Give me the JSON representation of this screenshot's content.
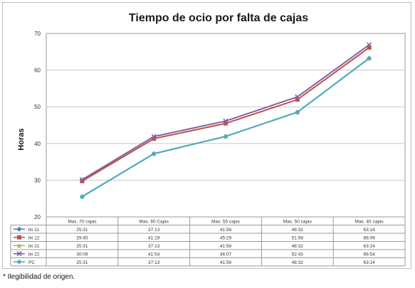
{
  "chart_data": {
    "type": "line",
    "title": "Tiempo de ocio por falta de cajas",
    "ylabel": "Horas",
    "xlabel": "",
    "ylim": [
      20,
      70
    ],
    "yticks": [
      20,
      30,
      40,
      50,
      60,
      70
    ],
    "grid": true,
    "legend": "table-below",
    "categories": [
      "Max. 70 cajas",
      "Max. 60 Cajas",
      "Max. 55 cajas",
      "Max. 50 cajas",
      "Max. 40 cajas"
    ],
    "series": [
      {
        "name": "lin 11",
        "color": "#4a7ebb",
        "marker": "diamond",
        "values": [
          25.52,
          37.22,
          41.93,
          48.53,
          63.23
        ],
        "labels": [
          "25:31",
          "37:13",
          "41:56",
          "48:32",
          "63:14"
        ]
      },
      {
        "name": "lin 12",
        "color": "#c0504d",
        "marker": "square",
        "values": [
          29.75,
          41.32,
          45.48,
          51.97,
          66.15
        ],
        "labels": [
          "29:45",
          "41:19",
          "45:29",
          "51:58",
          "66:09"
        ]
      },
      {
        "name": "lin 21",
        "color": "#9bbb59",
        "marker": "triangle",
        "values": [
          25.52,
          37.22,
          41.93,
          48.53,
          63.23
        ],
        "labels": [
          "25:31",
          "37:13",
          "41:56",
          "48:32",
          "63:14"
        ]
      },
      {
        "name": "lin 22",
        "color": "#8064a2",
        "marker": "x",
        "values": [
          30.15,
          41.9,
          46.12,
          52.72,
          66.9
        ],
        "labels": [
          "30:09",
          "41:54",
          "46:07",
          "52:43",
          "66:54"
        ]
      },
      {
        "name": "PC",
        "color": "#4bacc6",
        "marker": "star",
        "values": [
          25.52,
          37.22,
          41.93,
          48.53,
          63.23
        ],
        "labels": [
          "25:31",
          "37:13",
          "41:56",
          "48:32",
          "63:14"
        ]
      }
    ]
  },
  "footnote": "* Ilegibilidad de origen."
}
